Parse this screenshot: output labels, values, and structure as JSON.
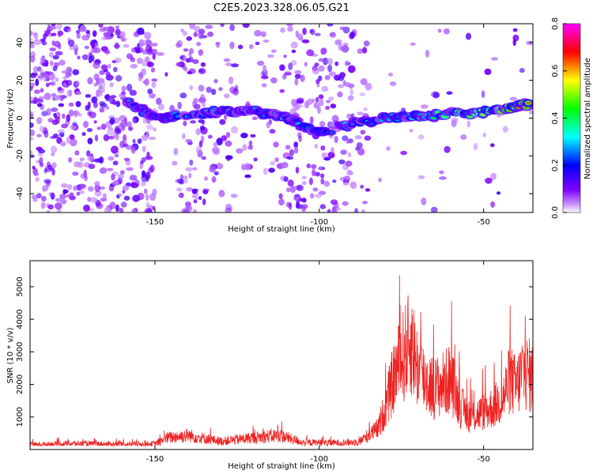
{
  "title": "C2E5.2023.328.06.05.G21",
  "chart_data": [
    {
      "type": "heatmap",
      "title": "C2E5.2023.328.06.05.G21",
      "xlabel": "Height of straight line (km)",
      "ylabel": "Frequency (Hz)",
      "xlim": [
        -188,
        -35
      ],
      "ylim": [
        -50,
        50
      ],
      "x_ticks": [
        -150,
        -100,
        -50
      ],
      "y_ticks": [
        -40,
        -20,
        0,
        20,
        40
      ],
      "colorbar": {
        "label": "Normalized spectral amplitude",
        "range": [
          0,
          0.8
        ],
        "ticks": [
          0.0,
          0.2,
          0.4,
          0.6,
          0.8
        ],
        "colormap": [
          "#ffffff",
          "#7d00ff",
          "#0000ff",
          "#00ffff",
          "#00ff00",
          "#ffff00",
          "#ff0000",
          "#ff00ff"
        ]
      },
      "ridge": {
        "description_points_x": [
          -160,
          -150,
          -140,
          -130,
          -120,
          -110,
          -100,
          -90,
          -80,
          -70,
          -60,
          -50,
          -40,
          -35
        ],
        "description_points_y": [
          10,
          0,
          2,
          3,
          4,
          0,
          -8,
          -3,
          0,
          1,
          2,
          3,
          6,
          8
        ]
      }
    },
    {
      "type": "line",
      "title": "",
      "xlabel": "Height of straight line (km)",
      "ylabel": "SNR (10 * v/v)",
      "xlim": [
        -188,
        -35
      ],
      "ylim": [
        0,
        5800
      ],
      "x_ticks": [
        -150,
        -100,
        -50
      ],
      "y_ticks": [
        1000,
        2000,
        3000,
        4000,
        5000
      ],
      "series": [
        {
          "color": "#ee2222",
          "envelope_x": [
            -188,
            -175,
            -160,
            -150,
            -146,
            -140,
            -130,
            -120,
            -112,
            -105,
            -95,
            -88,
            -82,
            -79,
            -77,
            -75,
            -72,
            -70,
            -68,
            -65,
            -62,
            -60,
            -57,
            -54,
            -50,
            -47,
            -44,
            -42,
            -40,
            -38,
            -35
          ],
          "envelope_y": [
            200,
            250,
            220,
            240,
            500,
            600,
            350,
            500,
            600,
            300,
            280,
            320,
            900,
            2200,
            3200,
            3800,
            4600,
            3400,
            3000,
            2600,
            2800,
            3000,
            1800,
            1400,
            1600,
            1800,
            2200,
            3000,
            2600,
            3400,
            3000
          ]
        }
      ]
    }
  ]
}
